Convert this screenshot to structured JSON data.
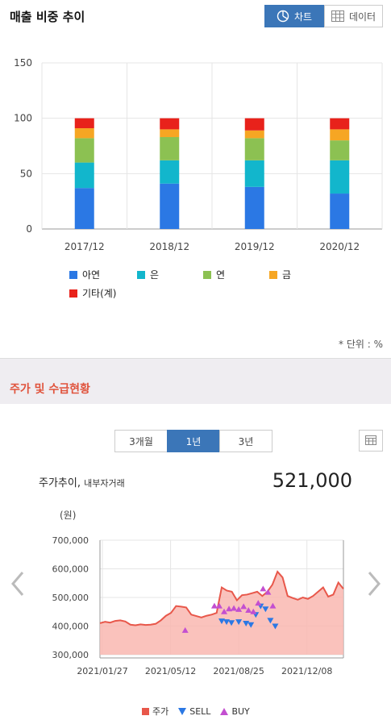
{
  "section1": {
    "title": "매출 비중 추이",
    "toggle_chart": "차트",
    "toggle_data": "데이터",
    "unit_note": "* 단위 : %"
  },
  "section2": {
    "title": "주가 및 수급현황",
    "periods": [
      "3개월",
      "1년",
      "3년"
    ],
    "active_period": "1년",
    "price_label": "주가추이,",
    "price_sublabel": "내부자거래",
    "price_value": "521,000",
    "won_label": "(원)"
  },
  "chart_data": [
    {
      "type": "bar",
      "stacked": true,
      "categories": [
        "2017/12",
        "2018/12",
        "2019/12",
        "2020/12"
      ],
      "ylim": [
        0,
        150
      ],
      "yticks": [
        0,
        50,
        100,
        150
      ],
      "legend": "bottom",
      "series": [
        {
          "name": "아연",
          "color": "#2b78e4",
          "values": [
            37,
            41,
            38,
            32
          ]
        },
        {
          "name": "은",
          "color": "#12b6cc",
          "values": [
            23,
            21,
            24,
            30
          ]
        },
        {
          "name": "연",
          "color": "#8cc152",
          "values": [
            22,
            21,
            20,
            18
          ]
        },
        {
          "name": "금",
          "color": "#f6a623",
          "values": [
            9,
            7,
            7,
            10
          ]
        },
        {
          "name": "기타(계)",
          "color": "#e8221b",
          "values": [
            9,
            10,
            11,
            10
          ]
        }
      ]
    },
    {
      "type": "area",
      "ylim": [
        300000,
        700000
      ],
      "yticks": [
        "300,000",
        "400,000",
        "500,000",
        "600,000",
        "700,000"
      ],
      "xticks": [
        "2021/01/27",
        "2021/05/12",
        "2021/08/25",
        "2021/12/08"
      ],
      "legend_items": [
        "주가",
        "SELL",
        "BUY"
      ],
      "series_price": [
        410000,
        415000,
        412000,
        418000,
        420000,
        416000,
        405000,
        403000,
        406000,
        404000,
        405000,
        408000,
        420000,
        436000,
        446000,
        470000,
        468000,
        465000,
        440000,
        435000,
        430000,
        436000,
        440000,
        446000,
        535000,
        524000,
        520000,
        490000,
        508000,
        510000,
        515000,
        520000,
        505000,
        520000,
        545000,
        590000,
        570000,
        505000,
        498000,
        492000,
        500000,
        495000,
        505000,
        520000,
        535000,
        503000,
        510000,
        552000,
        530000
      ],
      "sell": [
        [
          0.5,
          418000
        ],
        [
          0.52,
          415000
        ],
        [
          0.54,
          412000
        ],
        [
          0.57,
          415000
        ],
        [
          0.6,
          410000
        ],
        [
          0.62,
          405000
        ],
        [
          0.64,
          440000
        ],
        [
          0.66,
          470000
        ],
        [
          0.68,
          460000
        ],
        [
          0.7,
          420000
        ],
        [
          0.72,
          400000
        ]
      ],
      "buy": [
        [
          0.35,
          385000
        ],
        [
          0.47,
          470000
        ],
        [
          0.49,
          470000
        ],
        [
          0.51,
          450000
        ],
        [
          0.53,
          460000
        ],
        [
          0.55,
          462000
        ],
        [
          0.57,
          458000
        ],
        [
          0.59,
          468000
        ],
        [
          0.61,
          455000
        ],
        [
          0.63,
          450000
        ],
        [
          0.65,
          480000
        ],
        [
          0.67,
          530000
        ],
        [
          0.69,
          518000
        ],
        [
          0.71,
          470000
        ]
      ]
    }
  ],
  "colors": {
    "accent": "#3b76b8",
    "section_title": "#e0533c",
    "price_line": "#e8574a",
    "price_fill": "#f9b7b0",
    "sell": "#2b78e4",
    "buy": "#c34fd0"
  }
}
